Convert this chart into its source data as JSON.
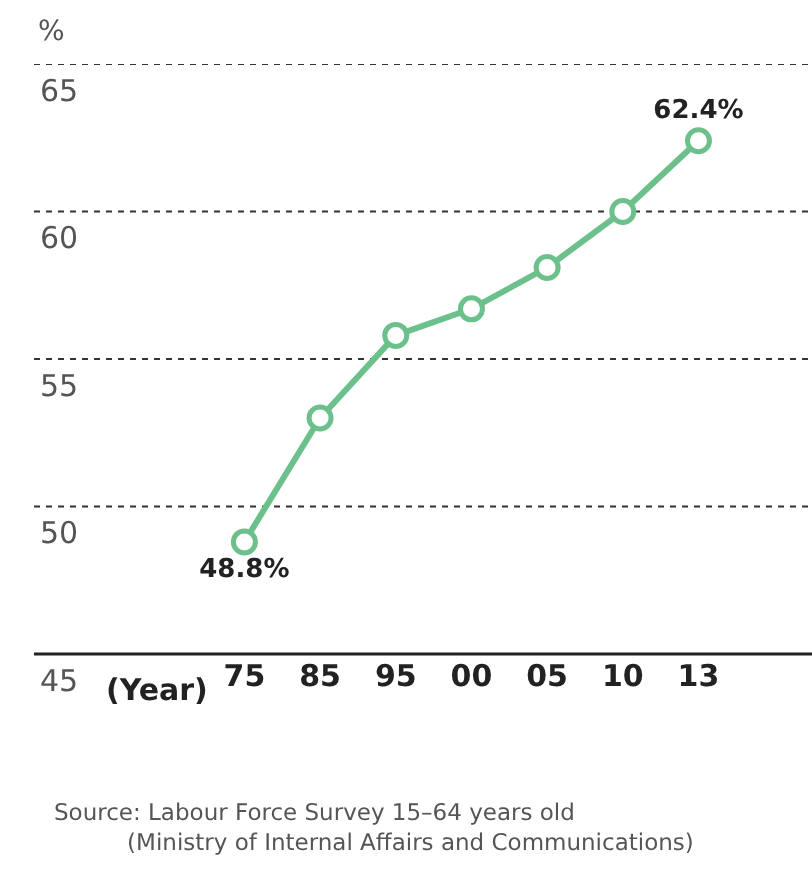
{
  "chart_data": {
    "type": "line",
    "ylabel": "%",
    "xlabel": "(Year)",
    "categories": [
      "75",
      "85",
      "95",
      "00",
      "05",
      "10",
      "13"
    ],
    "series": [
      {
        "color": "#6cc08b",
        "values": [
          48.8,
          53.0,
          55.8,
          56.7,
          58.1,
          60.0,
          62.4
        ],
        "value_labels": [
          "48.8%",
          null,
          null,
          null,
          null,
          null,
          "62.4%"
        ]
      }
    ],
    "ylim": [
      45,
      65
    ],
    "yticks": [
      45,
      50,
      55,
      60,
      65
    ],
    "grid": "y",
    "marker": "circle",
    "line_style": "solid",
    "annotations": [
      "Source: Labour Force Survey 15–64 years old\n(Ministry of Internal Affairs and Communications)"
    ]
  }
}
